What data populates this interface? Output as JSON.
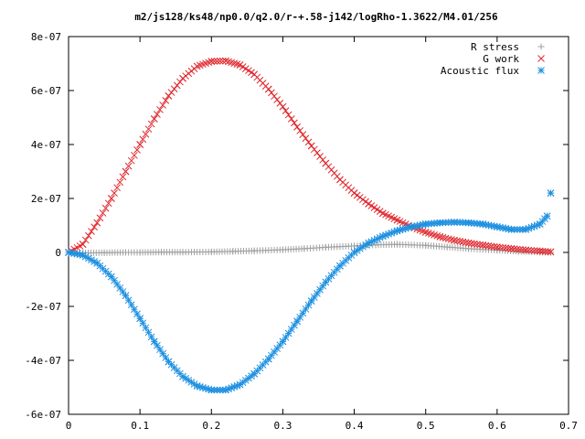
{
  "chart_data": {
    "type": "scatter",
    "title": "m2/js128/ks48/np0.0/q2.0/r-+.58-j142/logRho-1.3622/M4.01/256",
    "xlabel": "",
    "ylabel": "",
    "xlim": [
      0,
      0.7
    ],
    "ylim": [
      -6e-07,
      8e-07
    ],
    "x_ticks": [
      0,
      0.1,
      0.2,
      0.3,
      0.4,
      0.5,
      0.6,
      0.7
    ],
    "x_tick_labels": [
      "0",
      "0.1",
      "0.2",
      "0.3",
      "0.4",
      "0.5",
      "0.6",
      "0.7"
    ],
    "y_ticks": [
      -6e-07,
      -4e-07,
      -2e-07,
      0,
      2e-07,
      4e-07,
      6e-07,
      8e-07
    ],
    "y_tick_labels": [
      "-6e-07",
      "-4e-07",
      "-2e-07",
      "0",
      "2e-07",
      "4e-07",
      "6e-07",
      "8e-07"
    ],
    "grid": false,
    "legend_position": "top-right",
    "series": [
      {
        "name": "R stress",
        "marker": "plus",
        "color": "#a0a0a0",
        "x": [
          0.0,
          0.02,
          0.05,
          0.08,
          0.1,
          0.13,
          0.16,
          0.2,
          0.23,
          0.26,
          0.3,
          0.33,
          0.36,
          0.4,
          0.43,
          0.46,
          0.5,
          0.53,
          0.56,
          0.6,
          0.63,
          0.66,
          0.675
        ],
        "y": [
          0.0,
          -2e-09,
          -1e-09,
          0.0,
          0.0,
          1e-09,
          1e-09,
          2e-09,
          4e-09,
          6e-09,
          1e-08,
          1.4e-08,
          1.9e-08,
          2.4e-08,
          2.8e-08,
          3e-08,
          2.6e-08,
          2e-08,
          1.4e-08,
          8e-09,
          4e-09,
          1e-09,
          0.0
        ]
      },
      {
        "name": "G work",
        "marker": "cross",
        "color": "#e0282e",
        "x": [
          0.0,
          0.02,
          0.04,
          0.06,
          0.08,
          0.1,
          0.12,
          0.14,
          0.16,
          0.18,
          0.2,
          0.22,
          0.24,
          0.26,
          0.28,
          0.3,
          0.32,
          0.34,
          0.36,
          0.38,
          0.4,
          0.42,
          0.44,
          0.46,
          0.48,
          0.5,
          0.52,
          0.54,
          0.56,
          0.58,
          0.6,
          0.62,
          0.64,
          0.66,
          0.675
        ],
        "y": [
          0.0,
          3e-08,
          1.1e-07,
          2e-07,
          3e-07,
          4e-07,
          4.95e-07,
          5.8e-07,
          6.45e-07,
          6.9e-07,
          7.08e-07,
          7.1e-07,
          6.95e-07,
          6.6e-07,
          6.05e-07,
          5.4e-07,
          4.65e-07,
          3.95e-07,
          3.3e-07,
          2.7e-07,
          2.2e-07,
          1.8e-07,
          1.45e-07,
          1.2e-07,
          9.5e-08,
          7.5e-08,
          5.8e-08,
          4.5e-08,
          3.5e-08,
          2.7e-08,
          2e-08,
          1.4e-08,
          9e-09,
          5e-09,
          2e-09
        ]
      },
      {
        "name": "Acoustic flux",
        "marker": "star",
        "color": "#1e90e0",
        "x": [
          0.0,
          0.02,
          0.04,
          0.06,
          0.08,
          0.1,
          0.12,
          0.14,
          0.16,
          0.18,
          0.2,
          0.22,
          0.24,
          0.26,
          0.28,
          0.3,
          0.32,
          0.34,
          0.36,
          0.38,
          0.4,
          0.42,
          0.44,
          0.46,
          0.48,
          0.5,
          0.52,
          0.54,
          0.56,
          0.58,
          0.6,
          0.62,
          0.64,
          0.66,
          0.67,
          0.675
        ],
        "y": [
          0.0,
          -1e-08,
          -4e-08,
          -9e-08,
          -1.6e-07,
          -2.45e-07,
          -3.3e-07,
          -4.05e-07,
          -4.6e-07,
          -4.95e-07,
          -5.1e-07,
          -5.1e-07,
          -4.9e-07,
          -4.5e-07,
          -3.95e-07,
          -3.3e-07,
          -2.55e-07,
          -1.8e-07,
          -1.1e-07,
          -5e-08,
          0.0,
          3.5e-08,
          6e-08,
          8e-08,
          9.5e-08,
          1.05e-07,
          1.1e-07,
          1.12e-07,
          1.1e-07,
          1.05e-07,
          9.5e-08,
          8.5e-08,
          8.5e-08,
          1.05e-07,
          1.35e-07,
          2.2e-07
        ]
      }
    ]
  }
}
